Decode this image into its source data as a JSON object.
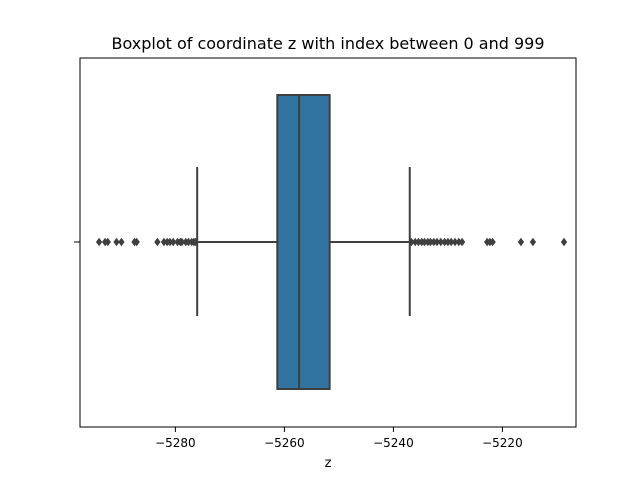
{
  "chart_data": {
    "type": "box",
    "title": "Boxplot of coordinate  z with index between 0 and 999",
    "xlabel": "z",
    "ylabel": "",
    "orientation": "horizontal",
    "xlim": [
      -5297.5,
      -5206.5
    ],
    "x_ticks": [
      -5280,
      -5260,
      -5240,
      -5220
    ],
    "x_tick_labels": [
      "−5280",
      "−5260",
      "−5240",
      "−5220"
    ],
    "grid": false,
    "box": {
      "whisker_low": -5276.0,
      "q1": -5261.3,
      "median": -5257.3,
      "q3": -5251.7,
      "whisker_high": -5237.0,
      "outliers_low": [
        -5294.0,
        -5292.9,
        -5292.4,
        -5290.8,
        -5289.9,
        -5287.5,
        -5287.1,
        -5283.3,
        -5282.1,
        -5281.5,
        -5281.0,
        -5280.4,
        -5279.6,
        -5279.1,
        -5278.8,
        -5278.1,
        -5277.6,
        -5277.0,
        -5276.6,
        -5276.3
      ],
      "outliers_high": [
        -5236.7,
        -5236.0,
        -5235.4,
        -5234.8,
        -5234.3,
        -5233.7,
        -5233.2,
        -5232.6,
        -5232.0,
        -5231.3,
        -5230.6,
        -5230.0,
        -5229.4,
        -5228.7,
        -5228.0,
        -5227.4,
        -5222.8,
        -5222.3,
        -5221.8,
        -5216.6,
        -5214.4,
        -5208.7
      ]
    },
    "colors": {
      "box": "#3274a1",
      "line": "#3f3f3f",
      "outlier": "#3f3f3f"
    }
  }
}
